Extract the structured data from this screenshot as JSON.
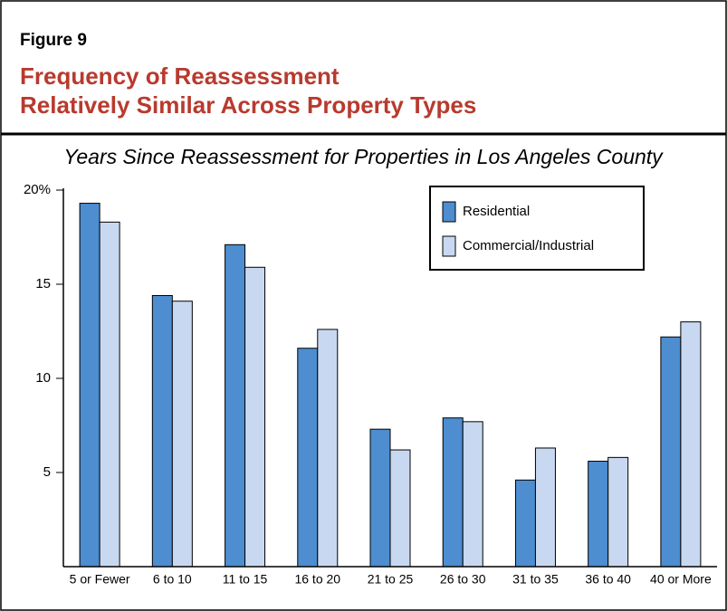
{
  "chart_data": {
    "type": "bar",
    "figure_label": "Figure 9",
    "title_lines": [
      "Frequency of Reassessment",
      "Relatively Similar Across Property Types"
    ],
    "subtitle": "Years Since Reassessment for Properties in Los Angeles County",
    "categories": [
      "5 or Fewer",
      "6 to 10",
      "11 to 15",
      "16 to 20",
      "21 to 25",
      "26 to 30",
      "31 to 35",
      "36 to 40",
      "40 or More"
    ],
    "series": [
      {
        "name": "Residential",
        "color": "#4d8dd0",
        "values": [
          19.3,
          14.4,
          17.1,
          11.6,
          7.3,
          7.9,
          4.6,
          5.6,
          12.2
        ]
      },
      {
        "name": "Commercial/Industrial",
        "color": "#c8d8f0",
        "values": [
          18.3,
          14.1,
          15.9,
          12.6,
          6.2,
          7.7,
          6.3,
          5.8,
          13.0
        ]
      }
    ],
    "ylim": [
      0,
      20
    ],
    "yticks": [
      5,
      10,
      15,
      {
        "value": 20,
        "label": "20%"
      }
    ],
    "legend": "top-right",
    "grid": false
  }
}
